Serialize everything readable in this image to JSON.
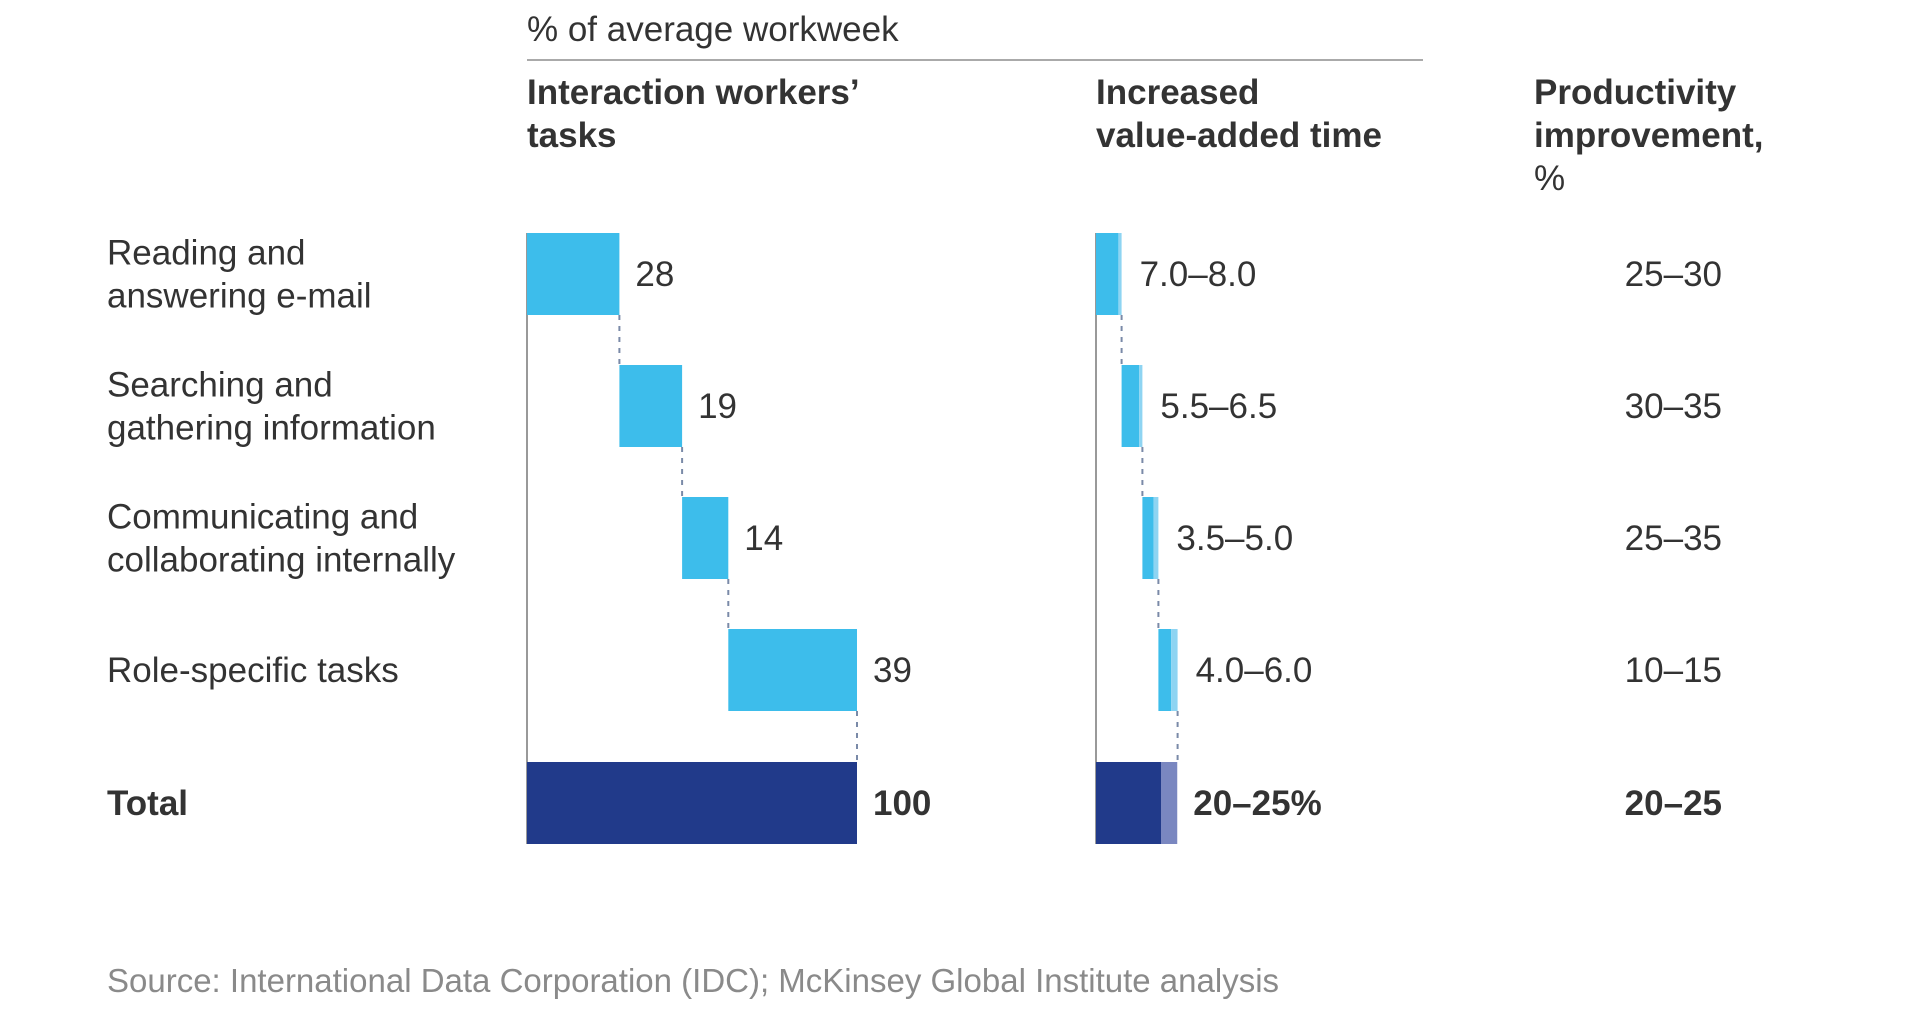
{
  "chart_data": {
    "type": "bar",
    "subtitle": "% of average workweek",
    "columns": [
      "Interaction workers' tasks",
      "Increased value-added time",
      "Productivity improvement, %"
    ],
    "header_lines": {
      "tasks": [
        "Interaction workers’",
        "tasks"
      ],
      "value_added": [
        "Increased",
        "value-added time"
      ],
      "productivity": [
        "Productivity",
        "improvement,",
        "%"
      ]
    },
    "rows": [
      {
        "label": [
          "Reading and",
          "answering e-mail"
        ],
        "share": 28,
        "share_label": "28",
        "value_low": 7.0,
        "value_high": 8.0,
        "value_label": "7.0–8.0",
        "productivity": "25–30"
      },
      {
        "label": [
          "Searching and",
          "gathering information"
        ],
        "share": 19,
        "share_label": "19",
        "value_low": 5.5,
        "value_high": 6.5,
        "value_label": "5.5–6.5",
        "productivity": "30–35"
      },
      {
        "label": [
          "Communicating and",
          "collaborating internally"
        ],
        "share": 14,
        "share_label": "14",
        "value_low": 3.5,
        "value_high": 5.0,
        "value_label": "3.5–5.0",
        "productivity": "25–35"
      },
      {
        "label": [
          "Role-specific tasks"
        ],
        "share": 39,
        "share_label": "39",
        "value_low": 4.0,
        "value_high": 6.0,
        "value_label": "4.0–6.0",
        "productivity": "10–15"
      }
    ],
    "total": {
      "label": "Total",
      "share": 100,
      "share_label": "100",
      "value_low": 20,
      "value_high": 25,
      "value_label": "20–25%",
      "productivity": "20–25"
    },
    "source": "Source: International Data Corporation (IDC); McKinsey Global Institute analysis",
    "colors": {
      "bar": "#3dbdeb",
      "bar_range": "#8ed4f2",
      "total": "#213a8a",
      "total_range": "#7a87c0",
      "axis": "#999999",
      "text": "#333333"
    }
  }
}
